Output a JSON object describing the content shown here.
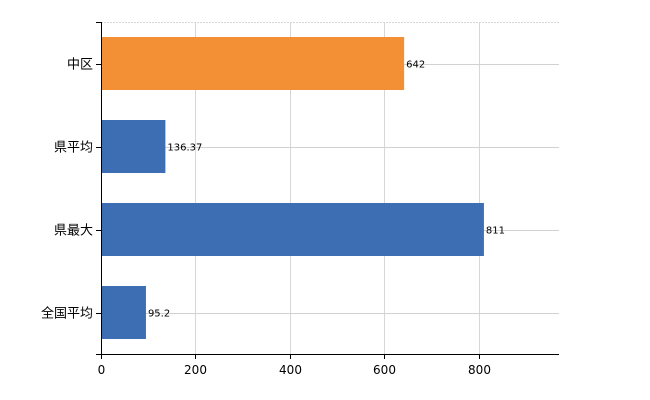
{
  "chart_data": {
    "type": "bar",
    "orientation": "horizontal",
    "categories": [
      "中区",
      "県平均",
      "県最大",
      "全国平均"
    ],
    "values": [
      642,
      136.37,
      811,
      95.2
    ],
    "data_labels": [
      "642",
      "136.37",
      "811",
      "95.2"
    ],
    "bar_colors": [
      "#f39035",
      "#3d6db3",
      "#3d6db3",
      "#3d6db3"
    ],
    "title": "",
    "xlabel": "",
    "ylabel": "",
    "xlim": [
      0,
      970
    ],
    "xticks": [
      0,
      200,
      400,
      600,
      800
    ],
    "grid": true,
    "legend": "none"
  }
}
